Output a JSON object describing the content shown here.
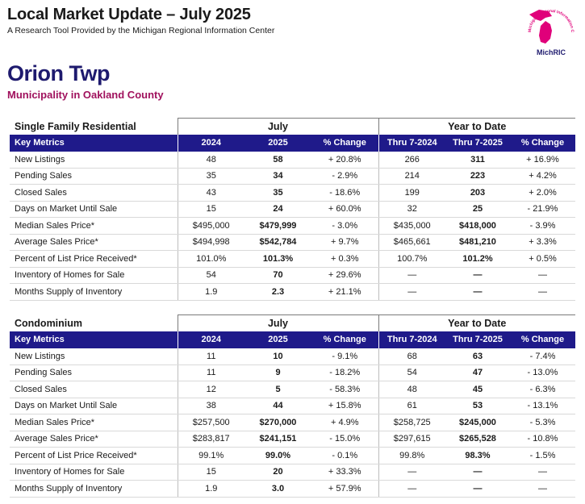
{
  "header": {
    "title": "Local Market Update – July 2025",
    "subtitle": "A Research Tool Provided by the Michigan Regional Information Center"
  },
  "logo": {
    "text": "MichRIC",
    "ring_text": "Michigan Regional Information Center",
    "color": "#e0007a"
  },
  "municipality": {
    "name": "Orion Twp",
    "sub": "Municipality in Oakland County"
  },
  "colors": {
    "header_bg": "#1f1a8a",
    "title_navy": "#1e1a6e",
    "sub_magenta": "#a0115d"
  },
  "columns": {
    "key_metrics": "Key Metrics",
    "july_group": "July",
    "ytd_group": "Year to Date",
    "july": [
      "2024",
      "2025",
      "% Change"
    ],
    "ytd": [
      "Thru 7-2024",
      "Thru 7-2025",
      "% Change"
    ]
  },
  "sections": [
    {
      "label": "Single Family Residential",
      "rows": [
        {
          "metric": "New Listings",
          "v": [
            "48",
            "58",
            "+ 20.8%",
            "266",
            "311",
            "+ 16.9%"
          ]
        },
        {
          "metric": "Pending Sales",
          "v": [
            "35",
            "34",
            "- 2.9%",
            "214",
            "223",
            "+ 4.2%"
          ]
        },
        {
          "metric": "Closed Sales",
          "v": [
            "43",
            "35",
            "- 18.6%",
            "199",
            "203",
            "+ 2.0%"
          ]
        },
        {
          "metric": "Days on Market Until Sale",
          "v": [
            "15",
            "24",
            "+ 60.0%",
            "32",
            "25",
            "- 21.9%"
          ]
        },
        {
          "metric": "Median Sales Price*",
          "v": [
            "$495,000",
            "$479,999",
            "- 3.0%",
            "$435,000",
            "$418,000",
            "- 3.9%"
          ]
        },
        {
          "metric": "Average Sales Price*",
          "v": [
            "$494,998",
            "$542,784",
            "+ 9.7%",
            "$465,661",
            "$481,210",
            "+ 3.3%"
          ]
        },
        {
          "metric": "Percent of List Price Received*",
          "v": [
            "101.0%",
            "101.3%",
            "+ 0.3%",
            "100.7%",
            "101.2%",
            "+ 0.5%"
          ]
        },
        {
          "metric": "Inventory of Homes for Sale",
          "v": [
            "54",
            "70",
            "+ 29.6%",
            "—",
            "—",
            "—"
          ]
        },
        {
          "metric": "Months Supply of Inventory",
          "v": [
            "1.9",
            "2.3",
            "+ 21.1%",
            "—",
            "—",
            "—"
          ]
        }
      ]
    },
    {
      "label": "Condominium",
      "rows": [
        {
          "metric": "New Listings",
          "v": [
            "11",
            "10",
            "- 9.1%",
            "68",
            "63",
            "- 7.4%"
          ]
        },
        {
          "metric": "Pending Sales",
          "v": [
            "11",
            "9",
            "- 18.2%",
            "54",
            "47",
            "- 13.0%"
          ]
        },
        {
          "metric": "Closed Sales",
          "v": [
            "12",
            "5",
            "- 58.3%",
            "48",
            "45",
            "- 6.3%"
          ]
        },
        {
          "metric": "Days on Market Until Sale",
          "v": [
            "38",
            "44",
            "+ 15.8%",
            "61",
            "53",
            "- 13.1%"
          ]
        },
        {
          "metric": "Median Sales Price*",
          "v": [
            "$257,500",
            "$270,000",
            "+ 4.9%",
            "$258,725",
            "$245,000",
            "- 5.3%"
          ]
        },
        {
          "metric": "Average Sales Price*",
          "v": [
            "$283,817",
            "$241,151",
            "- 15.0%",
            "$297,615",
            "$265,528",
            "- 10.8%"
          ]
        },
        {
          "metric": "Percent of List Price Received*",
          "v": [
            "99.1%",
            "99.0%",
            "- 0.1%",
            "99.8%",
            "98.3%",
            "- 1.5%"
          ]
        },
        {
          "metric": "Inventory of Homes for Sale",
          "v": [
            "15",
            "20",
            "+ 33.3%",
            "—",
            "—",
            "—"
          ]
        },
        {
          "metric": "Months Supply of Inventory",
          "v": [
            "1.9",
            "3.0",
            "+ 57.9%",
            "—",
            "—",
            "—"
          ]
        }
      ]
    }
  ]
}
